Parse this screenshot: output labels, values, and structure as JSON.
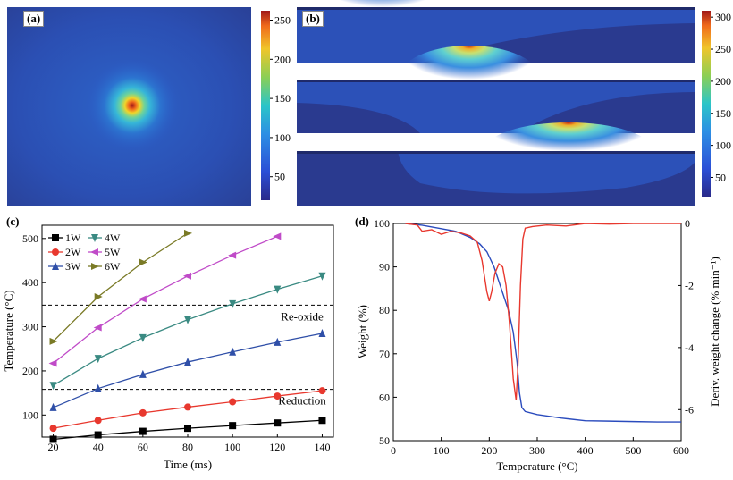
{
  "panels": {
    "a": {
      "label": "(a)",
      "colorbar_ticks": [
        "250",
        "200",
        "150",
        "100",
        "50"
      ],
      "colorbar_values": [
        250,
        200,
        150,
        100,
        50
      ],
      "colorbar_range": [
        20,
        262
      ]
    },
    "b": {
      "label": "(b)",
      "colorbar_ticks": [
        "300",
        "250",
        "200",
        "150",
        "100",
        "50"
      ],
      "colorbar_values": [
        300,
        250,
        200,
        150,
        100,
        50
      ],
      "colorbar_range": [
        20,
        310
      ]
    },
    "c": {
      "label": "(c)"
    },
    "d": {
      "label": "(d)"
    }
  },
  "chart_data": [
    {
      "panel": "c",
      "type": "line",
      "xlabel": "Time (ms)",
      "ylabel": "Temperature (°C)",
      "xlim": [
        15,
        145
      ],
      "ylim": [
        50,
        530
      ],
      "xticks": [
        20,
        40,
        60,
        80,
        100,
        120,
        140
      ],
      "yticks": [
        100,
        200,
        300,
        400,
        500
      ],
      "series": [
        {
          "name": "1W",
          "color": "#000000",
          "marker": "square",
          "x": [
            20,
            40,
            60,
            80,
            100,
            120,
            140
          ],
          "values": [
            45,
            55,
            63,
            70,
            76,
            82,
            88
          ]
        },
        {
          "name": "2W",
          "color": "#e8382e",
          "marker": "circle",
          "x": [
            20,
            40,
            60,
            80,
            100,
            120,
            140
          ],
          "values": [
            70,
            88,
            105,
            118,
            130,
            143,
            155
          ]
        },
        {
          "name": "3W",
          "color": "#2f4fa8",
          "marker": "triangle-up",
          "x": [
            20,
            40,
            60,
            80,
            100,
            120,
            140
          ],
          "values": [
            117,
            160,
            192,
            220,
            243,
            265,
            285
          ]
        },
        {
          "name": "4W",
          "color": "#3a8a82",
          "marker": "triangle-down",
          "x": [
            20,
            40,
            60,
            80,
            100,
            120,
            140
          ],
          "values": [
            167,
            228,
            275,
            316,
            352,
            385,
            415
          ]
        },
        {
          "name": "5W",
          "color": "#c04bc8",
          "marker": "triangle-left",
          "x": [
            20,
            40,
            60,
            80,
            100,
            120
          ],
          "values": [
            217,
            298,
            363,
            415,
            462,
            505
          ]
        },
        {
          "name": "6W",
          "color": "#7a7a26",
          "marker": "triangle-right",
          "x": [
            20,
            40,
            60,
            80
          ],
          "values": [
            267,
            368,
            446,
            512
          ]
        }
      ],
      "hlines": [
        {
          "y": 349,
          "label": "Re-oxide"
        },
        {
          "y": 158,
          "label": "Reduction"
        }
      ],
      "legend_position": "top-left"
    },
    {
      "panel": "d",
      "type": "line",
      "xlabel": "Temperature (°C)",
      "ylabel": "Weight (%)",
      "y2label": "Deriv. weight change (% min⁻¹)",
      "xlim": [
        0,
        600
      ],
      "ylim": [
        50,
        100
      ],
      "y2lim": [
        -7,
        0
      ],
      "xticks": [
        0,
        100,
        200,
        300,
        400,
        500,
        600
      ],
      "yticks": [
        50,
        60,
        70,
        80,
        90,
        100
      ],
      "y2ticks": [
        0,
        -2,
        -4,
        -6
      ],
      "series": [
        {
          "axis": "left",
          "color": "#2a4bbd",
          "x": [
            25,
            60,
            100,
            130,
            160,
            180,
            195,
            210,
            225,
            240,
            250,
            258,
            263,
            268,
            275,
            300,
            350,
            400,
            450,
            500,
            550,
            600
          ],
          "values": [
            100,
            99.6,
            98.8,
            98.2,
            96.8,
            95.3,
            93.5,
            90,
            85,
            80,
            75,
            68,
            61,
            57.6,
            56.7,
            56,
            55.2,
            54.6,
            54.5,
            54.4,
            54.3,
            54.3
          ]
        },
        {
          "axis": "right",
          "color": "#e8382e",
          "x": [
            25,
            50,
            60,
            80,
            100,
            120,
            140,
            160,
            175,
            185,
            195,
            200,
            205,
            212,
            220,
            228,
            235,
            242,
            250,
            256,
            260,
            265,
            270,
            275,
            290,
            320,
            360,
            400,
            450,
            500,
            550,
            600
          ],
          "values": [
            0,
            -0.05,
            -0.25,
            -0.2,
            -0.35,
            -0.25,
            -0.3,
            -0.4,
            -0.6,
            -1.2,
            -2.2,
            -2.5,
            -2.2,
            -1.6,
            -1.3,
            -1.4,
            -2.0,
            -3.2,
            -5.0,
            -5.7,
            -4.5,
            -2.0,
            -0.5,
            -0.15,
            -0.1,
            -0.05,
            -0.08,
            0,
            -0.02,
            0,
            0,
            0
          ]
        }
      ]
    }
  ]
}
